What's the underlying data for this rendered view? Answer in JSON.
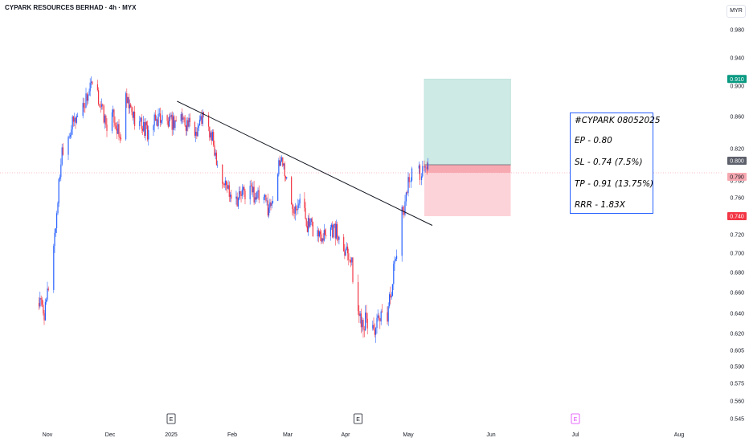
{
  "header": {
    "title": "CYPARK RESOURCES BERHAD · 4h · MYX",
    "currency": "MYR"
  },
  "colors": {
    "up": "#2962ff",
    "down": "#f23645",
    "target_zone": "#cdebe4",
    "stop_zone": "#fcd3d8",
    "entry_label": "#5d606b",
    "target_label": "#089981",
    "stop_label": "#f23645",
    "last_label": "#f7a9b2"
  },
  "chart_data": {
    "type": "candlestick",
    "ylim": [
      0.545,
      0.995
    ],
    "y_ticks": [
      "0.980",
      "0.940",
      "0.900",
      "0.860",
      "0.820",
      "0.780",
      "0.760",
      "0.740",
      "0.720",
      "0.700",
      "0.680",
      "0.660",
      "0.640",
      "0.620",
      "0.605",
      "0.590",
      "0.575",
      "0.560",
      "0.545"
    ],
    "x_ticks": [
      "Nov",
      "Dec",
      "2025",
      "Feb",
      "Mar",
      "Apr",
      "May",
      "Jun",
      "Jul",
      "Aug"
    ],
    "earnings_markers": [
      "E",
      "E",
      "E"
    ],
    "price_labels": {
      "target": "0.910",
      "entry": "0.800",
      "last": "0.790",
      "stop": "0.740"
    },
    "anchors": [
      [
        "2024-10-28",
        0.65
      ],
      [
        "2024-10-31",
        0.64
      ],
      [
        "2024-11-05",
        0.73
      ],
      [
        "2024-11-08",
        0.82
      ],
      [
        "2024-11-13",
        0.85
      ],
      [
        "2024-11-19",
        0.88
      ],
      [
        "2024-11-22",
        0.9
      ],
      [
        "2024-11-26",
        0.88
      ],
      [
        "2024-11-29",
        0.85
      ],
      [
        "2024-12-03",
        0.86
      ],
      [
        "2024-12-06",
        0.83
      ],
      [
        "2024-12-09",
        0.88
      ],
      [
        "2024-12-13",
        0.86
      ],
      [
        "2024-12-17",
        0.85
      ],
      [
        "2024-12-20",
        0.84
      ],
      [
        "2024-12-26",
        0.86
      ],
      [
        "2024-12-31",
        0.85
      ],
      [
        "2025-01-06",
        0.86
      ],
      [
        "2025-01-13",
        0.84
      ],
      [
        "2025-01-17",
        0.86
      ],
      [
        "2025-01-22",
        0.83
      ],
      [
        "2025-01-27",
        0.78
      ],
      [
        "2025-02-03",
        0.76
      ],
      [
        "2025-02-10",
        0.77
      ],
      [
        "2025-02-14",
        0.76
      ],
      [
        "2025-02-20",
        0.75
      ],
      [
        "2025-02-26",
        0.81
      ],
      [
        "2025-03-03",
        0.75
      ],
      [
        "2025-03-07",
        0.76
      ],
      [
        "2025-03-12",
        0.73
      ],
      [
        "2025-03-18",
        0.72
      ],
      [
        "2025-03-24",
        0.73
      ],
      [
        "2025-03-28",
        0.72
      ],
      [
        "2025-04-03",
        0.7
      ],
      [
        "2025-04-07",
        0.64
      ],
      [
        "2025-04-11",
        0.63
      ],
      [
        "2025-04-15",
        0.625
      ],
      [
        "2025-04-21",
        0.64
      ],
      [
        "2025-04-24",
        0.68
      ],
      [
        "2025-04-28",
        0.74
      ],
      [
        "2025-05-02",
        0.79
      ],
      [
        "2025-05-06",
        0.79
      ],
      [
        "2025-05-08",
        0.8
      ]
    ],
    "trendline": {
      "start": [
        "2025-01-04",
        0.88
      ],
      "end": [
        "2025-05-10",
        0.73
      ]
    },
    "position": {
      "start": "2025-05-07",
      "end": "2025-06-08",
      "entry": 0.8,
      "stop": 0.74,
      "target": 0.91
    }
  },
  "note": {
    "line1": "#CYPARK 08052025",
    "line2": "EP - 0.80",
    "line3": "SL - 0.74 (7.5%)",
    "line4": "TP - 0.91 (13.75%)",
    "line5": "RRR - 1.83X"
  }
}
